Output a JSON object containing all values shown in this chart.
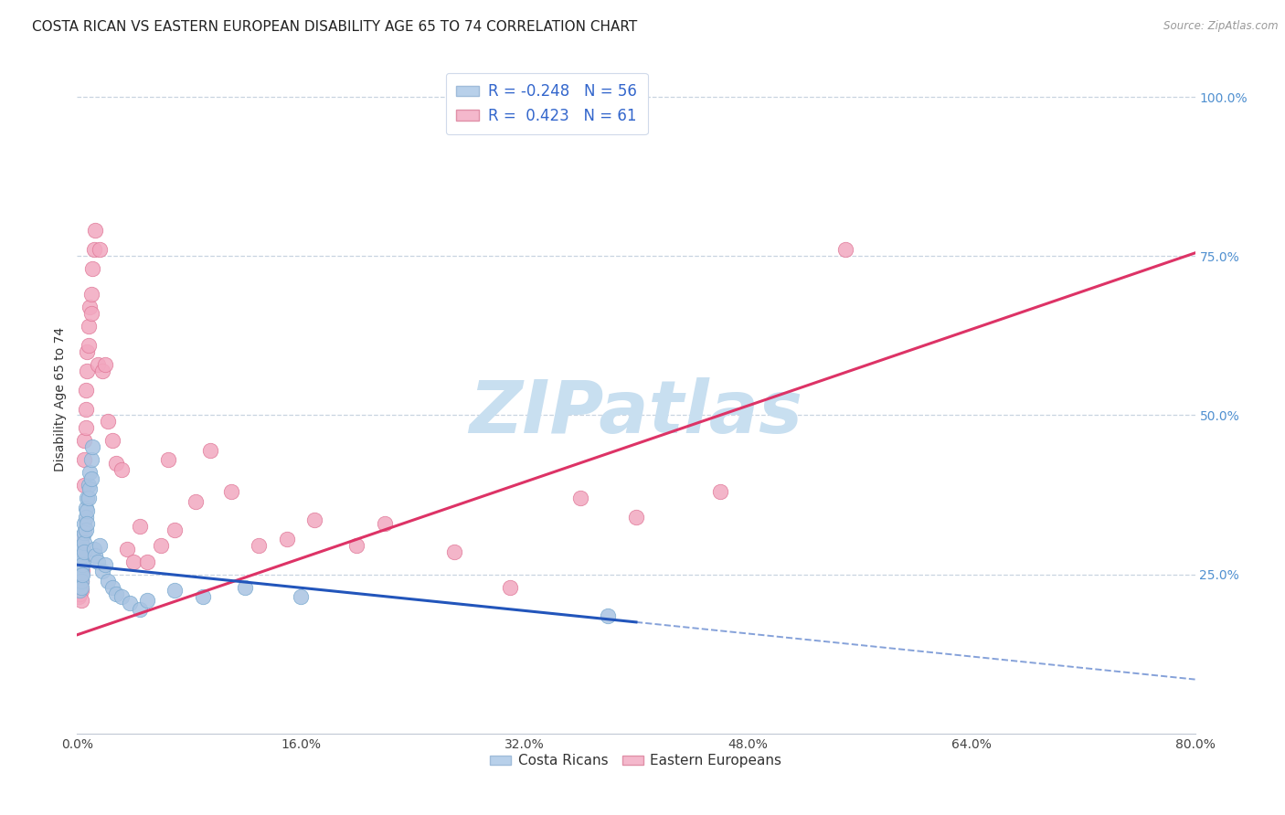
{
  "title": "COSTA RICAN VS EASTERN EUROPEAN DISABILITY AGE 65 TO 74 CORRELATION CHART",
  "source": "Source: ZipAtlas.com",
  "ylabel": "Disability Age 65 to 74",
  "ytick_labels": [
    "100.0%",
    "75.0%",
    "50.0%",
    "25.0%"
  ],
  "ytick_positions": [
    1.0,
    0.75,
    0.5,
    0.25
  ],
  "xtick_positions": [
    0.0,
    0.16,
    0.32,
    0.48,
    0.64,
    0.8
  ],
  "xmin": 0.0,
  "xmax": 0.8,
  "ymin": 0.0,
  "ymax": 1.05,
  "blue_R": -0.248,
  "blue_N": 56,
  "pink_R": 0.423,
  "pink_N": 61,
  "blue_color": "#aac4e2",
  "blue_edge": "#7aaad0",
  "pink_color": "#f2a8c0",
  "pink_edge": "#e07898",
  "blue_line_color": "#2255bb",
  "pink_line_color": "#dd3366",
  "legend_blue_color": "#b8d0ea",
  "legend_pink_color": "#f4b8cc",
  "watermark_color": "#c8dff0",
  "background_color": "#ffffff",
  "grid_color": "#c8d4e0",
  "title_fontsize": 11,
  "axis_label_fontsize": 10,
  "tick_fontsize": 10,
  "blue_x": [
    0.001,
    0.001,
    0.001,
    0.002,
    0.002,
    0.002,
    0.002,
    0.002,
    0.002,
    0.003,
    0.003,
    0.003,
    0.003,
    0.003,
    0.003,
    0.003,
    0.004,
    0.004,
    0.004,
    0.004,
    0.004,
    0.005,
    0.005,
    0.005,
    0.005,
    0.006,
    0.006,
    0.006,
    0.007,
    0.007,
    0.007,
    0.008,
    0.008,
    0.009,
    0.009,
    0.01,
    0.01,
    0.011,
    0.012,
    0.013,
    0.015,
    0.016,
    0.018,
    0.02,
    0.022,
    0.025,
    0.028,
    0.032,
    0.038,
    0.045,
    0.05,
    0.07,
    0.09,
    0.12,
    0.16,
    0.38
  ],
  "blue_y": [
    0.26,
    0.25,
    0.24,
    0.275,
    0.265,
    0.255,
    0.245,
    0.235,
    0.225,
    0.29,
    0.28,
    0.27,
    0.26,
    0.25,
    0.24,
    0.23,
    0.31,
    0.295,
    0.28,
    0.265,
    0.25,
    0.33,
    0.315,
    0.3,
    0.285,
    0.355,
    0.34,
    0.32,
    0.37,
    0.35,
    0.33,
    0.39,
    0.37,
    0.41,
    0.385,
    0.43,
    0.4,
    0.45,
    0.29,
    0.28,
    0.27,
    0.295,
    0.255,
    0.265,
    0.24,
    0.23,
    0.22,
    0.215,
    0.205,
    0.195,
    0.21,
    0.225,
    0.215,
    0.23,
    0.215,
    0.185
  ],
  "pink_x": [
    0.001,
    0.001,
    0.001,
    0.002,
    0.002,
    0.002,
    0.002,
    0.003,
    0.003,
    0.003,
    0.003,
    0.003,
    0.004,
    0.004,
    0.004,
    0.004,
    0.005,
    0.005,
    0.005,
    0.006,
    0.006,
    0.006,
    0.007,
    0.007,
    0.008,
    0.008,
    0.009,
    0.01,
    0.01,
    0.011,
    0.012,
    0.013,
    0.015,
    0.016,
    0.018,
    0.02,
    0.022,
    0.025,
    0.028,
    0.032,
    0.036,
    0.04,
    0.045,
    0.05,
    0.06,
    0.065,
    0.07,
    0.085,
    0.095,
    0.11,
    0.13,
    0.15,
    0.17,
    0.2,
    0.22,
    0.27,
    0.31,
    0.36,
    0.4,
    0.46,
    0.55
  ],
  "pink_y": [
    0.24,
    0.23,
    0.215,
    0.26,
    0.248,
    0.235,
    0.22,
    0.27,
    0.255,
    0.24,
    0.225,
    0.21,
    0.31,
    0.295,
    0.275,
    0.255,
    0.46,
    0.43,
    0.39,
    0.54,
    0.51,
    0.48,
    0.6,
    0.57,
    0.64,
    0.61,
    0.67,
    0.69,
    0.66,
    0.73,
    0.76,
    0.79,
    0.58,
    0.76,
    0.57,
    0.58,
    0.49,
    0.46,
    0.425,
    0.415,
    0.29,
    0.27,
    0.325,
    0.27,
    0.295,
    0.43,
    0.32,
    0.365,
    0.445,
    0.38,
    0.295,
    0.305,
    0.335,
    0.295,
    0.33,
    0.285,
    0.23,
    0.37,
    0.34,
    0.38,
    0.76
  ],
  "blue_line_x_start": 0.0,
  "blue_line_x_solid_end": 0.4,
  "blue_line_x_dash_end": 0.8,
  "blue_line_y_at_0": 0.265,
  "blue_line_y_at_40": 0.175,
  "blue_line_y_at_80": 0.085,
  "pink_line_x_start": 0.0,
  "pink_line_x_end": 0.8,
  "pink_line_y_at_0": 0.155,
  "pink_line_y_at_80": 0.755
}
